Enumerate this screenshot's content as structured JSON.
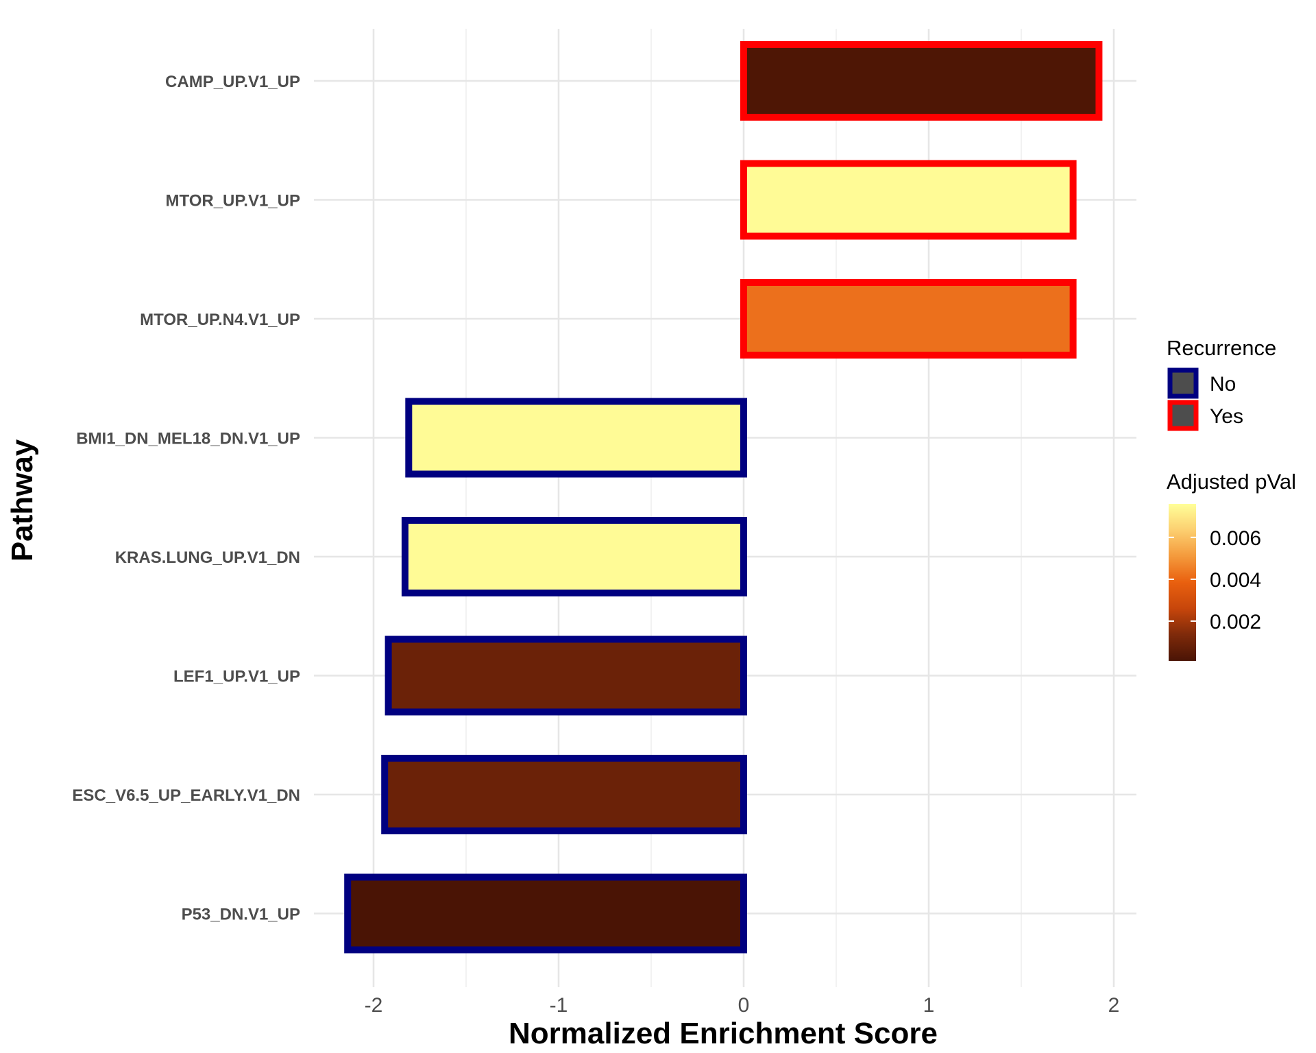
{
  "chart_data": {
    "type": "bar",
    "orientation": "horizontal",
    "categories": [
      "CAMP_UP.V1_UP",
      "MTOR_UP.V1_UP",
      "MTOR_UP.N4.V1_UP",
      "BMI1_DN_MEL18_DN.V1_UP",
      "KRAS.LUNG_UP.V1_DN",
      "LEF1_UP.V1_UP",
      "ESC_V6.5_UP_EARLY.V1_DN",
      "P53_DN.V1_UP"
    ],
    "values": [
      1.92,
      1.78,
      1.78,
      -1.81,
      -1.83,
      -1.92,
      -1.94,
      -2.14
    ],
    "recurrence": [
      "Yes",
      "Yes",
      "Yes",
      "No",
      "No",
      "No",
      "No",
      "No"
    ],
    "adjusted_pval": [
      0.0002,
      0.0075,
      0.0042,
      0.0075,
      0.0075,
      0.0009,
      0.0009,
      0.0001
    ],
    "xlabel": "Normalized Enrichment Score",
    "ylabel": "Pathway",
    "xlim": [
      -2.2,
      2.1
    ],
    "x_ticks": [
      -2,
      -1,
      0,
      1,
      2
    ],
    "x_tick_labels": [
      "-2",
      "-1",
      "0",
      "1",
      "2"
    ],
    "grid": true,
    "legend_position": "right",
    "legend_recurrence": {
      "title": "Recurrence",
      "items": [
        {
          "label": "No",
          "color": "#000080"
        },
        {
          "label": "Yes",
          "color": "#ff0000"
        }
      ],
      "fill_color": "#4d4d4d"
    },
    "legend_pval": {
      "title": "Adjusted pVal",
      "range": [
        0.0001,
        0.0076
      ],
      "ticks": [
        0.002,
        0.004,
        0.006
      ],
      "tick_labels": [
        "0.002",
        "0.004",
        "0.006"
      ],
      "colors": [
        "#4a1405",
        "#7e2a0a",
        "#c7460b",
        "#e9600f",
        "#f49a3c",
        "#fccf70",
        "#ffff99"
      ]
    }
  }
}
